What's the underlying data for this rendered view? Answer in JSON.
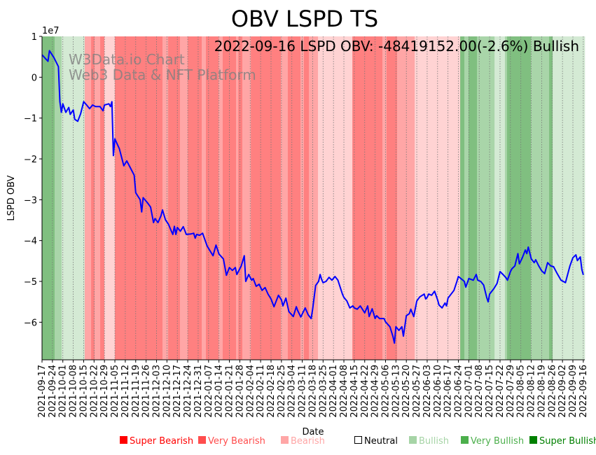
{
  "chart_data": {
    "type": "line",
    "title": "OBV LSPD TS",
    "xlabel": "Date",
    "ylabel": "LSPD OBV",
    "y_offset_label": "1e7",
    "y_scale": 10000000,
    "ylim": [
      -6.92,
      1.0
    ],
    "xlim_days": [
      0,
      365
    ],
    "yticks": [
      1,
      0,
      -1,
      -2,
      -3,
      -4,
      -5,
      -6
    ],
    "ytick_labels": [
      "1",
      "0",
      "−1",
      "−2",
      "−3",
      "−4",
      "−5",
      "−6"
    ],
    "annotation": "2022-09-16 LSPD OBV: -48419152.00(-2.6%) Bullish",
    "watermark": [
      "W3Data.io Chart",
      "Web3 Data & NFT Platform"
    ],
    "xtick_step_days": 7,
    "xtick_labels": [
      "2021-09-17",
      "2021-09-24",
      "2021-10-01",
      "2021-10-08",
      "2021-10-15",
      "2021-10-22",
      "2021-10-29",
      "2021-11-05",
      "2021-11-12",
      "2021-11-19",
      "2021-11-26",
      "2021-12-03",
      "2021-12-10",
      "2021-12-17",
      "2021-12-24",
      "2021-12-31",
      "2022-01-07",
      "2022-01-14",
      "2022-01-21",
      "2022-01-28",
      "2022-02-04",
      "2022-02-11",
      "2022-02-18",
      "2022-02-25",
      "2022-03-04",
      "2022-03-11",
      "2022-03-18",
      "2022-03-25",
      "2022-04-01",
      "2022-04-08",
      "2022-04-15",
      "2022-04-22",
      "2022-04-29",
      "2022-05-06",
      "2022-05-13",
      "2022-05-20",
      "2022-05-27",
      "2022-06-03",
      "2022-06-10",
      "2022-06-17",
      "2022-06-24",
      "2022-07-01",
      "2022-07-08",
      "2022-07-15",
      "2022-07-22",
      "2022-07-29",
      "2022-08-05",
      "2022-08-12",
      "2022-08-19",
      "2022-08-26",
      "2022-09-02",
      "2022-09-09",
      "2022-09-16"
    ],
    "series_color": "#0000ff",
    "series": [
      {
        "name": "LSPD OBV (x1e7), [day offset from 2021-09-17, value]",
        "points": [
          [
            0,
            0.55
          ],
          [
            4,
            0.39
          ],
          [
            5,
            0.65
          ],
          [
            8,
            0.48
          ],
          [
            11,
            0.26
          ],
          [
            12,
            -0.6
          ],
          [
            13,
            -0.86
          ],
          [
            14,
            -0.65
          ],
          [
            16,
            -0.86
          ],
          [
            18,
            -0.74
          ],
          [
            19,
            -0.91
          ],
          [
            21,
            -0.8
          ],
          [
            22,
            -1.03
          ],
          [
            24,
            -1.08
          ],
          [
            26,
            -0.89
          ],
          [
            28,
            -0.6
          ],
          [
            30,
            -0.68
          ],
          [
            32,
            -0.77
          ],
          [
            34,
            -0.68
          ],
          [
            36,
            -0.72
          ],
          [
            39,
            -0.72
          ],
          [
            41,
            -0.82
          ],
          [
            42,
            -0.68
          ],
          [
            45,
            -0.65
          ],
          [
            46,
            -0.72
          ],
          [
            47,
            -0.6
          ],
          [
            48,
            -1.92
          ],
          [
            49,
            -1.51
          ],
          [
            52,
            -1.75
          ],
          [
            55,
            -2.17
          ],
          [
            57,
            -2.05
          ],
          [
            59,
            -2.19
          ],
          [
            62,
            -2.4
          ],
          [
            63,
            -2.83
          ],
          [
            66,
            -3.0
          ],
          [
            67,
            -3.3
          ],
          [
            68,
            -2.95
          ],
          [
            71,
            -3.08
          ],
          [
            73,
            -3.18
          ],
          [
            75,
            -3.56
          ],
          [
            76,
            -3.46
          ],
          [
            78,
            -3.56
          ],
          [
            80,
            -3.39
          ],
          [
            81,
            -3.25
          ],
          [
            83,
            -3.49
          ],
          [
            85,
            -3.6
          ],
          [
            87,
            -3.77
          ],
          [
            88,
            -3.85
          ],
          [
            89,
            -3.65
          ],
          [
            90,
            -3.85
          ],
          [
            91,
            -3.68
          ],
          [
            93,
            -3.77
          ],
          [
            95,
            -3.66
          ],
          [
            97,
            -3.85
          ],
          [
            100,
            -3.84
          ],
          [
            102,
            -3.82
          ],
          [
            103,
            -3.94
          ],
          [
            104,
            -3.85
          ],
          [
            106,
            -3.87
          ],
          [
            108,
            -3.82
          ],
          [
            111,
            -4.13
          ],
          [
            113,
            -4.25
          ],
          [
            115,
            -4.37
          ],
          [
            117,
            -4.11
          ],
          [
            119,
            -4.33
          ],
          [
            122,
            -4.45
          ],
          [
            124,
            -4.85
          ],
          [
            126,
            -4.66
          ],
          [
            128,
            -4.73
          ],
          [
            130,
            -4.66
          ],
          [
            131,
            -4.83
          ],
          [
            134,
            -4.62
          ],
          [
            136,
            -4.37
          ],
          [
            137,
            -5.0
          ],
          [
            139,
            -4.83
          ],
          [
            141,
            -4.97
          ],
          [
            142,
            -4.93
          ],
          [
            144,
            -5.12
          ],
          [
            146,
            -5.07
          ],
          [
            148,
            -5.22
          ],
          [
            150,
            -5.15
          ],
          [
            152,
            -5.31
          ],
          [
            154,
            -5.43
          ],
          [
            156,
            -5.62
          ],
          [
            159,
            -5.34
          ],
          [
            161,
            -5.45
          ],
          [
            162,
            -5.6
          ],
          [
            164,
            -5.41
          ],
          [
            166,
            -5.74
          ],
          [
            169,
            -5.86
          ],
          [
            171,
            -5.62
          ],
          [
            172,
            -5.72
          ],
          [
            174,
            -5.87
          ],
          [
            177,
            -5.65
          ],
          [
            179,
            -5.82
          ],
          [
            181,
            -5.91
          ],
          [
            182,
            -5.68
          ],
          [
            184,
            -5.1
          ],
          [
            186,
            -5.0
          ],
          [
            187,
            -4.83
          ],
          [
            188,
            -4.95
          ],
          [
            189,
            -5.03
          ],
          [
            191,
            -5.0
          ],
          [
            193,
            -4.9
          ],
          [
            195,
            -4.97
          ],
          [
            197,
            -4.88
          ],
          [
            199,
            -4.97
          ],
          [
            202,
            -5.31
          ],
          [
            203,
            -5.39
          ],
          [
            205,
            -5.48
          ],
          [
            207,
            -5.65
          ],
          [
            209,
            -5.6
          ],
          [
            210,
            -5.65
          ],
          [
            212,
            -5.68
          ],
          [
            214,
            -5.6
          ],
          [
            217,
            -5.77
          ],
          [
            219,
            -5.6
          ],
          [
            220,
            -5.86
          ],
          [
            222,
            -5.67
          ],
          [
            224,
            -5.91
          ],
          [
            225,
            -5.84
          ],
          [
            227,
            -5.91
          ],
          [
            228,
            -5.91
          ],
          [
            230,
            -5.91
          ],
          [
            231,
            -5.99
          ],
          [
            234,
            -6.11
          ],
          [
            236,
            -6.35
          ],
          [
            237,
            -6.51
          ],
          [
            238,
            -6.11
          ],
          [
            240,
            -6.2
          ],
          [
            242,
            -6.11
          ],
          [
            243,
            -6.34
          ],
          [
            245,
            -5.84
          ],
          [
            247,
            -5.79
          ],
          [
            248,
            -5.68
          ],
          [
            250,
            -5.86
          ],
          [
            252,
            -5.48
          ],
          [
            254,
            -5.38
          ],
          [
            257,
            -5.31
          ],
          [
            258,
            -5.43
          ],
          [
            259,
            -5.39
          ],
          [
            260,
            -5.31
          ],
          [
            262,
            -5.34
          ],
          [
            264,
            -5.24
          ],
          [
            266,
            -5.45
          ],
          [
            267,
            -5.58
          ],
          [
            269,
            -5.65
          ],
          [
            271,
            -5.53
          ],
          [
            272,
            -5.6
          ],
          [
            273,
            -5.41
          ],
          [
            277,
            -5.22
          ],
          [
            279,
            -5.0
          ],
          [
            280,
            -4.88
          ],
          [
            284,
            -5.0
          ],
          [
            285,
            -5.14
          ],
          [
            287,
            -4.93
          ],
          [
            290,
            -4.97
          ],
          [
            292,
            -4.83
          ],
          [
            293,
            -4.97
          ],
          [
            295,
            -5.0
          ],
          [
            297,
            -5.09
          ],
          [
            299,
            -5.39
          ],
          [
            300,
            -5.5
          ],
          [
            301,
            -5.31
          ],
          [
            304,
            -5.17
          ],
          [
            306,
            -5.05
          ],
          [
            308,
            -4.76
          ],
          [
            310,
            -4.83
          ],
          [
            312,
            -4.91
          ],
          [
            313,
            -4.97
          ],
          [
            315,
            -4.76
          ],
          [
            316,
            -4.69
          ],
          [
            318,
            -4.62
          ],
          [
            320,
            -4.32
          ],
          [
            321,
            -4.57
          ],
          [
            323,
            -4.42
          ],
          [
            325,
            -4.23
          ],
          [
            326,
            -4.32
          ],
          [
            327,
            -4.16
          ],
          [
            329,
            -4.45
          ],
          [
            331,
            -4.54
          ],
          [
            332,
            -4.47
          ],
          [
            334,
            -4.62
          ],
          [
            336,
            -4.74
          ],
          [
            338,
            -4.81
          ],
          [
            340,
            -4.54
          ],
          [
            342,
            -4.62
          ],
          [
            344,
            -4.64
          ],
          [
            346,
            -4.78
          ],
          [
            349,
            -4.97
          ],
          [
            352,
            -5.03
          ],
          [
            355,
            -4.62
          ],
          [
            357,
            -4.42
          ],
          [
            359,
            -4.35
          ],
          [
            360,
            -4.49
          ],
          [
            362,
            -4.4
          ],
          [
            363,
            -4.71
          ],
          [
            364,
            -4.84
          ]
        ]
      }
    ],
    "regime_colors": {
      "super_bearish": "#ff8080",
      "very_bearish": "#ffa6a6",
      "bearish": "#ffd3d3",
      "bullish": "#d4ead4",
      "very_bullish": "#a9d5a9",
      "super_bullish": "#80bf80"
    },
    "regimes": [
      [
        0,
        8.5,
        "super_bullish"
      ],
      [
        8.5,
        13.2,
        "very_bullish"
      ],
      [
        13.2,
        28.7,
        "bullish"
      ],
      [
        28.7,
        33,
        "very_bearish"
      ],
      [
        33,
        35.3,
        "super_bearish"
      ],
      [
        35.3,
        39.1,
        "very_bearish"
      ],
      [
        39.1,
        41.9,
        "super_bearish"
      ],
      [
        41.9,
        49,
        "bearish"
      ],
      [
        49,
        81,
        "super_bearish"
      ],
      [
        81,
        84.8,
        "very_bearish"
      ],
      [
        84.8,
        92.8,
        "super_bearish"
      ],
      [
        92.8,
        98,
        "very_bearish"
      ],
      [
        98,
        107.4,
        "super_bearish"
      ],
      [
        107.4,
        110.2,
        "very_bearish"
      ],
      [
        110.2,
        118.7,
        "super_bearish"
      ],
      [
        118.7,
        121.5,
        "very_bearish"
      ],
      [
        121.5,
        130.5,
        "super_bearish"
      ],
      [
        130.5,
        132,
        "very_bearish"
      ],
      [
        132,
        134.7,
        "super_bearish"
      ],
      [
        134.7,
        140.4,
        "very_bearish"
      ],
      [
        140.4,
        160.6,
        "super_bearish"
      ],
      [
        160.6,
        165.3,
        "very_bearish"
      ],
      [
        165.3,
        173.8,
        "super_bearish"
      ],
      [
        173.8,
        176.1,
        "very_bearish"
      ],
      [
        176.1,
        179.5,
        "super_bearish"
      ],
      [
        179.5,
        185.6,
        "very_bearish"
      ],
      [
        185.6,
        208.7,
        "bearish"
      ],
      [
        208.7,
        228.9,
        "super_bearish"
      ],
      [
        228.9,
        231.7,
        "very_bearish"
      ],
      [
        231.7,
        238.8,
        "super_bearish"
      ],
      [
        238.8,
        250.6,
        "very_bearish"
      ],
      [
        250.6,
        281.2,
        "bearish"
      ],
      [
        281.2,
        284,
        "super_bullish"
      ],
      [
        284,
        286.8,
        "very_bullish"
      ],
      [
        286.8,
        292.5,
        "super_bullish"
      ],
      [
        292.5,
        304.3,
        "very_bullish"
      ],
      [
        304.3,
        311.3,
        "bullish"
      ],
      [
        311.3,
        312.7,
        "very_bullish"
      ],
      [
        312.7,
        328.8,
        "super_bullish"
      ],
      [
        328.8,
        341,
        "very_bullish"
      ],
      [
        341,
        343.4,
        "super_bullish"
      ],
      [
        343.4,
        365,
        "bullish"
      ]
    ],
    "legend": [
      {
        "label": "Super Bearish",
        "color": "#ff0000"
      },
      {
        "label": "Very Bearish",
        "color": "#ff4d4d"
      },
      {
        "label": "Bearish",
        "color": "#ffa6a6"
      },
      {
        "label": "Neutral",
        "color": "#000000",
        "outline": true
      },
      {
        "label": "Bullish",
        "color": "#a6d4a6"
      },
      {
        "label": "Very Bullish",
        "color": "#4caf4c"
      },
      {
        "label": "Super Bullish",
        "color": "#008000"
      }
    ],
    "legend_placement": "bottom"
  }
}
